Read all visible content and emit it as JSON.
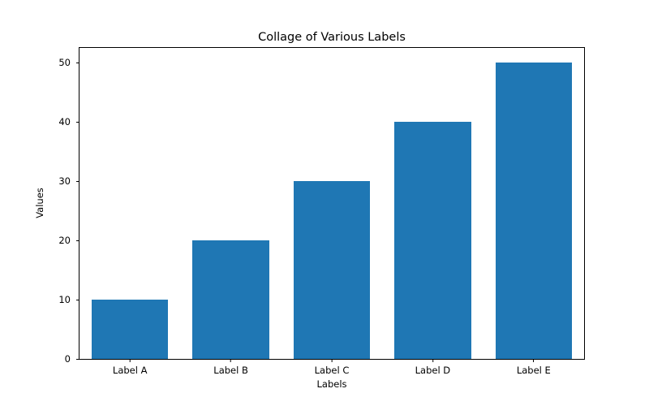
{
  "chart_data": {
    "type": "bar",
    "title": "Collage of Various Labels",
    "xlabel": "Labels",
    "ylabel": "Values",
    "categories": [
      "Label A",
      "Label B",
      "Label C",
      "Label D",
      "Label E"
    ],
    "values": [
      10,
      20,
      30,
      40,
      50
    ],
    "yticks": [
      0,
      10,
      20,
      30,
      40,
      50
    ],
    "ylim": [
      0,
      52.5
    ],
    "bar_color": "#1f77b4",
    "axis_color": "#000000",
    "background_color": "#ffffff",
    "grid": "off",
    "legend": "none"
  }
}
